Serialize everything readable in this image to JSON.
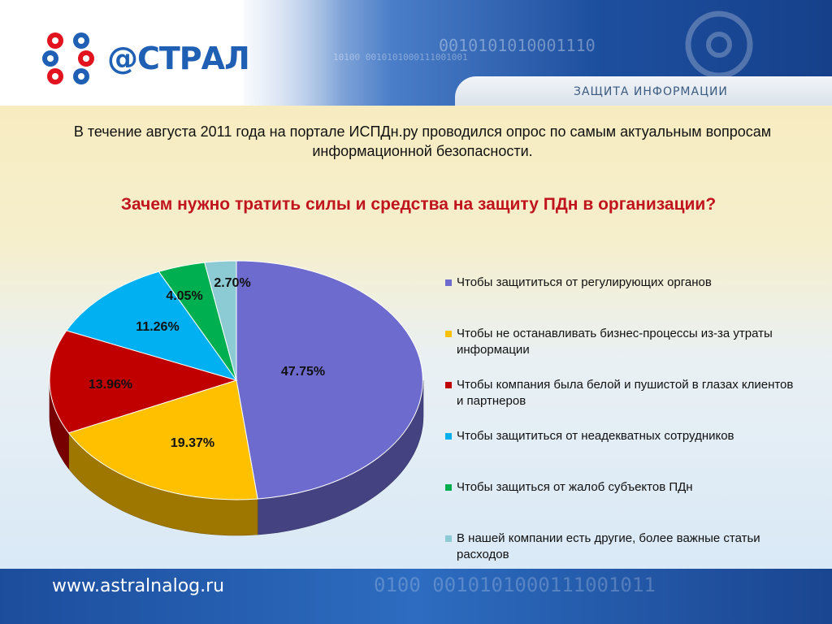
{
  "header": {
    "brand": "@СТРАЛ",
    "tagline": "ЗАЩИТА ИНФОРМАЦИИ",
    "binary_top": "0010101010001110",
    "binary_mid": "10100   0010101000111001001"
  },
  "intro_text": "В течение августа 2011 года на портале ИСПДн.ру проводился опрос по самым актуальным вопросам информационной безопасности.",
  "question": "Зачем нужно тратить силы и средства на защиту ПДн в  организации?",
  "chart_data": {
    "type": "pie",
    "title": "",
    "categories": [
      "Чтобы защититься от регулирующих органов",
      "Чтобы не останавливать бизнес-процессы из-за утраты информации",
      "Чтобы компания была белой и пушистой в глазах клиентов и партнеров",
      "Чтобы защититься от неадекватных сотрудников",
      "Чтобы защиться от жалоб субъектов ПДн",
      "В нашей компании есть другие, более важные статьи расходов"
    ],
    "values": [
      47.75,
      19.37,
      13.96,
      11.26,
      4.05,
      2.7
    ],
    "value_labels": [
      "47.75%",
      "19.37%",
      "13.96%",
      "11.26%",
      "4.05%",
      "2.70%"
    ],
    "colors": [
      "#6e6bcf",
      "#ffc000",
      "#c00000",
      "#00b0f0",
      "#00b050",
      "#8ccbd3"
    ],
    "legend_position": "right",
    "style": "3d"
  },
  "footer": {
    "url": "www.astralnalog.ru",
    "binary": "0100   0010101000111001011"
  }
}
